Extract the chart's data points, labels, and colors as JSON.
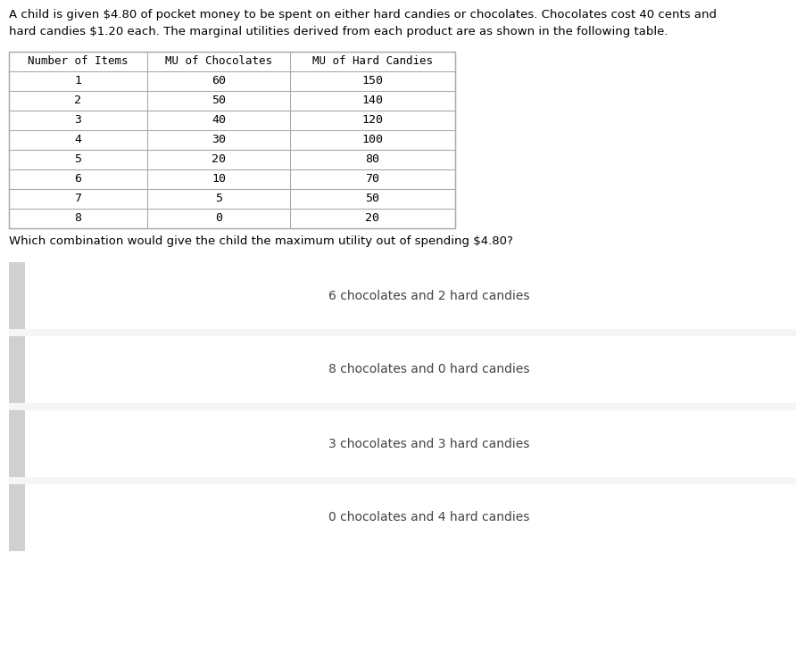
{
  "title_text": "A child is given $4.80 of pocket money to be spent on either hard candies or chocolates. Chocolates cost 40 cents and\nhard candies $1.20 each. The marginal utilities derived from each product are as shown in the following table.",
  "table_header": [
    "Number of Items",
    "MU of Chocolates",
    "MU of Hard Candies"
  ],
  "table_rows": [
    [
      1,
      60,
      150
    ],
    [
      2,
      50,
      140
    ],
    [
      3,
      40,
      120
    ],
    [
      4,
      30,
      100
    ],
    [
      5,
      20,
      80
    ],
    [
      6,
      10,
      70
    ],
    [
      7,
      5,
      50
    ],
    [
      8,
      0,
      20
    ]
  ],
  "question_text": "Which combination would give the child the maximum utility out of spending $4.80?",
  "options": [
    "6 chocolates and 2 hard candies",
    "8 chocolates and 0 hard candies",
    "3 chocolates and 3 hard candies",
    "0 chocolates and 4 hard candies"
  ],
  "bg_color": "#ffffff",
  "table_border_color": "#aaaaaa",
  "option_text_color": "#444444",
  "title_font_size": 9.5,
  "table_header_font_size": 9.0,
  "table_data_font_size": 9.5,
  "question_font_size": 9.5,
  "option_font_size": 10.0,
  "option_bg_white": "#ffffff",
  "option_bg_gray": "#f5f5f5",
  "option_left_bar_color": "#d0d0d0",
  "separator_color": "#dddddd"
}
